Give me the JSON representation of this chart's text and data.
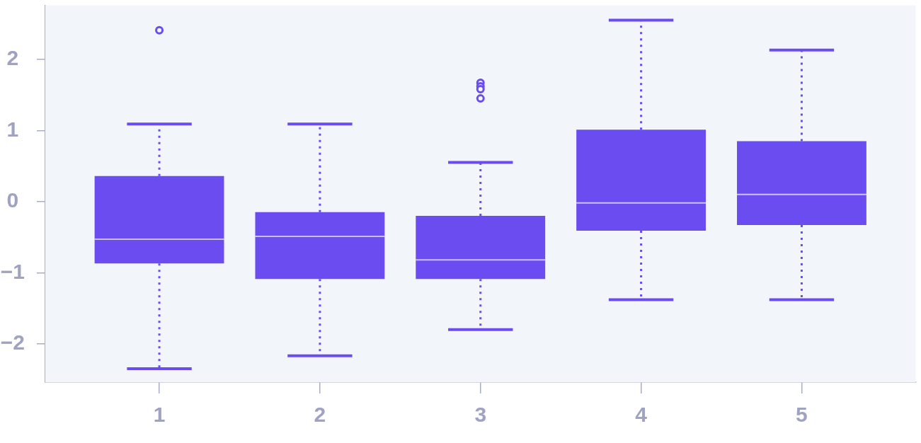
{
  "chart_data": {
    "type": "box",
    "categories": [
      "1",
      "2",
      "3",
      "4",
      "5"
    ],
    "series": [
      {
        "color": "#6b4cf0",
        "boxes": [
          {
            "low": -2.35,
            "q1": -0.87,
            "median": -0.53,
            "q3": 0.36,
            "high": 1.09,
            "outliers": [
              2.41
            ]
          },
          {
            "low": -2.17,
            "q1": -1.09,
            "median": -0.49,
            "q3": -0.15,
            "high": 1.09
          },
          {
            "low": -1.8,
            "q1": -1.09,
            "median": -0.82,
            "q3": -0.2,
            "high": 0.55,
            "outliers": [
              1.67,
              1.62,
              1.58,
              1.45
            ]
          },
          {
            "low": -1.38,
            "q1": -0.41,
            "median": -0.02,
            "q3": 1.01,
            "high": 2.55
          },
          {
            "low": -1.38,
            "q1": -0.33,
            "median": 0.1,
            "q3": 0.85,
            "high": 2.13
          }
        ]
      }
    ],
    "ylim": [
      -2.54,
      2.76
    ],
    "yticks": [
      {
        "value": -2,
        "label": "−2"
      },
      {
        "value": -1,
        "label": "−1"
      },
      0,
      1,
      2
    ],
    "marker": "circle",
    "line_style": "dotted"
  }
}
